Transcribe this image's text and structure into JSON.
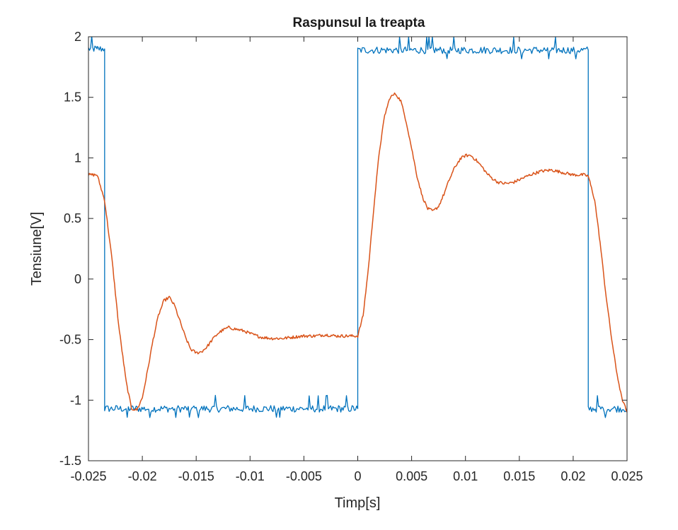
{
  "chart_data": {
    "type": "line",
    "title": "Raspunsul la treapta",
    "xlabel": "Timp[s]",
    "ylabel": "Tensiune[V]",
    "xlim": [
      -0.025,
      0.025
    ],
    "ylim": [
      -1.5,
      2
    ],
    "xticks": [
      -0.025,
      -0.02,
      -0.015,
      -0.01,
      -0.005,
      0,
      0.005,
      0.01,
      0.015,
      0.02,
      0.025
    ],
    "xtick_labels": [
      "-0.025",
      "-0.02",
      "-0.015",
      "-0.01",
      "-0.005",
      "0",
      "0.005",
      "0.01",
      "0.015",
      "0.02",
      "0.025"
    ],
    "yticks": [
      -1.5,
      -1,
      -0.5,
      0,
      0.5,
      1,
      1.5,
      2
    ],
    "ytick_labels": [
      "-1.5",
      "-1",
      "-0.5",
      "0",
      "0.5",
      "1",
      "1.5",
      "2"
    ],
    "grid": false,
    "legend": "none",
    "colors": {
      "input": "#0072BD",
      "response": "#D95319",
      "axes": "#262626"
    },
    "series": [
      {
        "color": "#0072BD",
        "x": [
          -0.025,
          -0.0242,
          -0.0242,
          -0.0235,
          -0.0235,
          0,
          0,
          0.0214,
          0.0214,
          0.025
        ],
        "y": [
          1.9,
          1.9,
          1.9,
          1.9,
          -1.07,
          -1.07,
          1.89,
          1.89,
          -1.07,
          -1.07
        ]
      },
      {
        "color": "#D95319",
        "x": [
          -0.025,
          -0.0242,
          -0.0235,
          -0.0228,
          -0.0222,
          -0.0215,
          -0.021,
          -0.0205,
          -0.02,
          -0.0195,
          -0.019,
          -0.0185,
          -0.018,
          -0.0175,
          -0.017,
          -0.0165,
          -0.016,
          -0.0155,
          -0.015,
          -0.0145,
          -0.014,
          -0.0135,
          -0.013,
          -0.0125,
          -0.012,
          -0.0115,
          -0.011,
          -0.0105,
          -0.01,
          -0.009,
          -0.008,
          -0.007,
          -0.006,
          -0.005,
          -0.004,
          -0.003,
          -0.002,
          -0.001,
          0,
          0.0005,
          0.001,
          0.0015,
          0.002,
          0.0025,
          0.003,
          0.0035,
          0.004,
          0.0045,
          0.005,
          0.0055,
          0.006,
          0.0065,
          0.007,
          0.0075,
          0.008,
          0.0085,
          0.009,
          0.0095,
          0.01,
          0.0105,
          0.011,
          0.0115,
          0.012,
          0.0125,
          0.013,
          0.0135,
          0.014,
          0.0145,
          0.015,
          0.016,
          0.017,
          0.018,
          0.019,
          0.02,
          0.021,
          0.0214,
          0.022,
          0.0225,
          0.023,
          0.0235,
          0.024,
          0.0245,
          0.025
        ],
        "y": [
          0.86,
          0.86,
          0.65,
          0.15,
          -0.38,
          -0.85,
          -1.07,
          -1.08,
          -0.98,
          -0.75,
          -0.5,
          -0.3,
          -0.18,
          -0.15,
          -0.22,
          -0.35,
          -0.48,
          -0.58,
          -0.61,
          -0.6,
          -0.56,
          -0.5,
          -0.45,
          -0.42,
          -0.4,
          -0.41,
          -0.42,
          -0.43,
          -0.45,
          -0.48,
          -0.49,
          -0.49,
          -0.48,
          -0.47,
          -0.47,
          -0.46,
          -0.47,
          -0.47,
          -0.47,
          -0.3,
          0.1,
          0.6,
          1.05,
          1.35,
          1.5,
          1.53,
          1.47,
          1.3,
          1.08,
          0.85,
          0.68,
          0.58,
          0.56,
          0.6,
          0.7,
          0.82,
          0.92,
          0.99,
          1.02,
          1.02,
          0.98,
          0.93,
          0.87,
          0.83,
          0.8,
          0.79,
          0.79,
          0.8,
          0.82,
          0.86,
          0.89,
          0.9,
          0.88,
          0.86,
          0.86,
          0.85,
          0.65,
          0.3,
          -0.1,
          -0.45,
          -0.75,
          -0.98,
          -1.1
        ]
      }
    ]
  }
}
